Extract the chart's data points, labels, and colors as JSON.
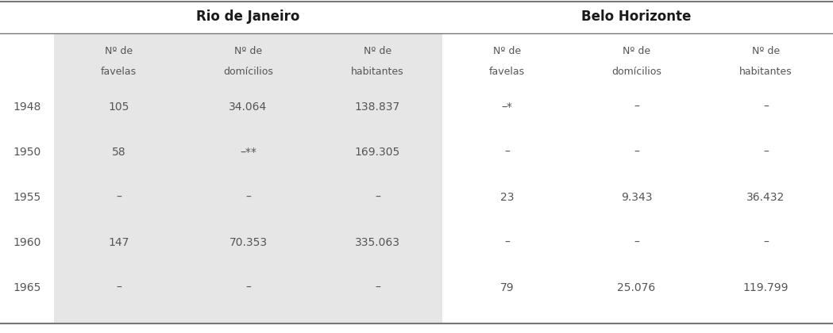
{
  "title_left": "Rio de Janeiro",
  "title_right": "Belo Horizonte",
  "col_headers_line1": [
    "Nº de",
    "Nº de",
    "Nº de",
    "Nº de",
    "Nº de",
    "Nº de"
  ],
  "col_headers_line2": [
    "favelas",
    "domícilios",
    "habitantes",
    "favelas",
    "domícilios",
    "habitantes"
  ],
  "row_labels": [
    "1948",
    "1950",
    "1955",
    "1960",
    "1965"
  ],
  "data": [
    [
      "105",
      "34.064",
      "138.837",
      "–*",
      "–",
      "–"
    ],
    [
      "58",
      "–**",
      "169.305",
      "–",
      "–",
      "–"
    ],
    [
      "–",
      "–",
      "–",
      "23",
      "9.343",
      "36.432"
    ],
    [
      "147",
      "70.353",
      "335.063",
      "–",
      "–",
      "–"
    ],
    [
      "–",
      "–",
      "–",
      "79",
      "25.076",
      "119.799"
    ]
  ],
  "shaded_bg": "#e6e6e6",
  "white_bg": "#ffffff",
  "text_color": "#555555",
  "title_color": "#1a1a1a",
  "line_color": "#777777",
  "font_size_title": 12,
  "font_size_header": 9,
  "font_size_data": 10,
  "font_size_row_label": 10
}
